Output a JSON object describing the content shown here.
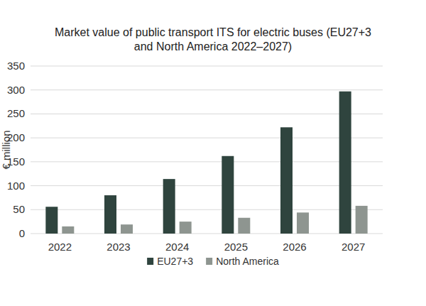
{
  "chart_data": {
    "type": "bar",
    "title": "Market value of public transport ITS for electric buses (EU27+3 and North America 2022–2027)",
    "y_label": "€ million",
    "categories": [
      "2022",
      "2023",
      "2024",
      "2025",
      "2026",
      "2027"
    ],
    "series": [
      {
        "name": "EU27+3",
        "color": "#2f443e",
        "values": [
          56,
          80,
          114,
          162,
          222,
          297
        ]
      },
      {
        "name": "North America",
        "color": "#8e9590",
        "values": [
          15,
          19,
          25,
          33,
          44,
          58
        ]
      }
    ],
    "ylim": [
      0,
      350
    ],
    "yticks": [
      0,
      50,
      100,
      150,
      200,
      250,
      300,
      350
    ],
    "grid": true,
    "legend": "bottom"
  }
}
